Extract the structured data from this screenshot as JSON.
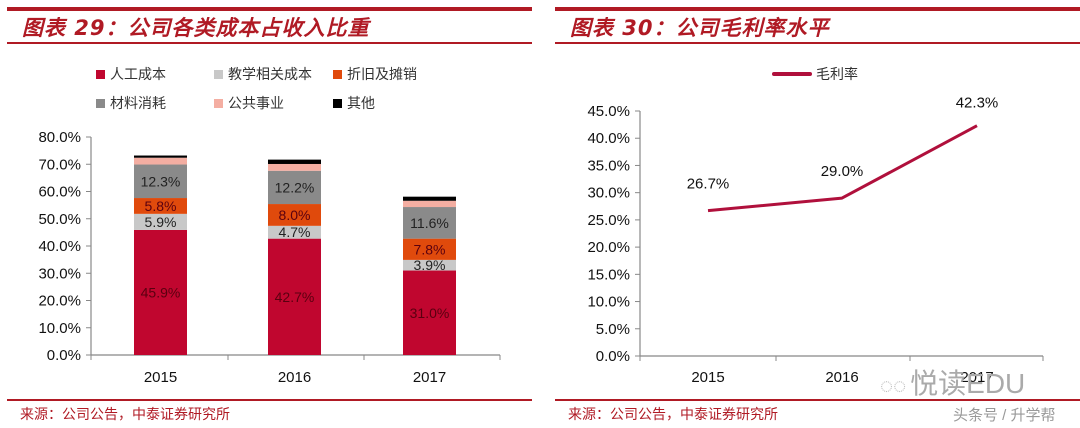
{
  "left_panel": {
    "title": "图表 29：公司各类成本占收入比重",
    "source": "来源：公司公告，中泰证券研究所",
    "legend": [
      {
        "label": "人工成本",
        "color": "#c0062f"
      },
      {
        "label": "教学相关成本",
        "color": "#c8c8c8"
      },
      {
        "label": "折旧及摊销",
        "color": "#e04a0c"
      },
      {
        "label": "材料消耗",
        "color": "#8a8a8a"
      },
      {
        "label": "公共事业",
        "color": "#f4aea2"
      },
      {
        "label": "其他",
        "color": "#000000"
      }
    ],
    "y_ticks": [
      "0.0%",
      "10.0%",
      "20.0%",
      "30.0%",
      "40.0%",
      "50.0%",
      "60.0%",
      "70.0%",
      "80.0%"
    ],
    "x_ticks": [
      "2015",
      "2016",
      "2017"
    ]
  },
  "right_panel": {
    "title": "图表 30：公司毛利率水平",
    "source": "来源：公司公告，中泰证券研究所",
    "legend_label": "毛利率",
    "line_color": "#b0103c",
    "y_ticks": [
      "0.0%",
      "5.0%",
      "10.0%",
      "15.0%",
      "20.0%",
      "25.0%",
      "30.0%",
      "35.0%",
      "40.0%",
      "45.0%"
    ],
    "x_ticks": [
      "2015",
      "2016",
      "2017"
    ]
  },
  "watermark": {
    "brand": "悦读EDU",
    "sub": "头条号 / 升学帮"
  },
  "chart_data": [
    {
      "type": "bar",
      "stacked": true,
      "title": "图表 29：公司各类成本占收入比重",
      "categories": [
        "2015",
        "2016",
        "2017"
      ],
      "series": [
        {
          "name": "人工成本",
          "values": [
            45.9,
            42.7,
            31.0
          ],
          "labels": [
            "45.9%",
            "42.7%",
            "31.0%"
          ]
        },
        {
          "name": "教学相关成本",
          "values": [
            5.9,
            4.7,
            3.9
          ],
          "labels": [
            "5.9%",
            "4.7%",
            "3.9%"
          ]
        },
        {
          "name": "折旧及摊销",
          "values": [
            5.8,
            8.0,
            7.8
          ],
          "labels": [
            "5.8%",
            "8.0%",
            "7.8%"
          ]
        },
        {
          "name": "材料消耗",
          "values": [
            12.3,
            12.2,
            11.6
          ],
          "labels": [
            "12.3%",
            "12.2%",
            "11.6%"
          ]
        },
        {
          "name": "公共事业",
          "values": [
            2.5,
            2.5,
            2.3
          ],
          "labels": [
            "",
            "",
            ""
          ]
        },
        {
          "name": "其他",
          "values": [
            0.8,
            1.6,
            1.5
          ],
          "labels": [
            "",
            "",
            ""
          ]
        }
      ],
      "xlabel": "",
      "ylabel": "",
      "ylim": [
        0,
        80
      ],
      "legend_position": "top",
      "source": "来源：公司公告，中泰证券研究所"
    },
    {
      "type": "line",
      "title": "图表 30：公司毛利率水平",
      "x": [
        "2015",
        "2016",
        "2017"
      ],
      "series": [
        {
          "name": "毛利率",
          "values": [
            26.7,
            29.0,
            42.3
          ],
          "labels": [
            "26.7%",
            "29.0%",
            "42.3%"
          ]
        }
      ],
      "xlabel": "",
      "ylabel": "",
      "ylim": [
        0,
        45
      ],
      "legend_position": "top",
      "source": "来源：公司公告，中泰证券研究所"
    }
  ]
}
